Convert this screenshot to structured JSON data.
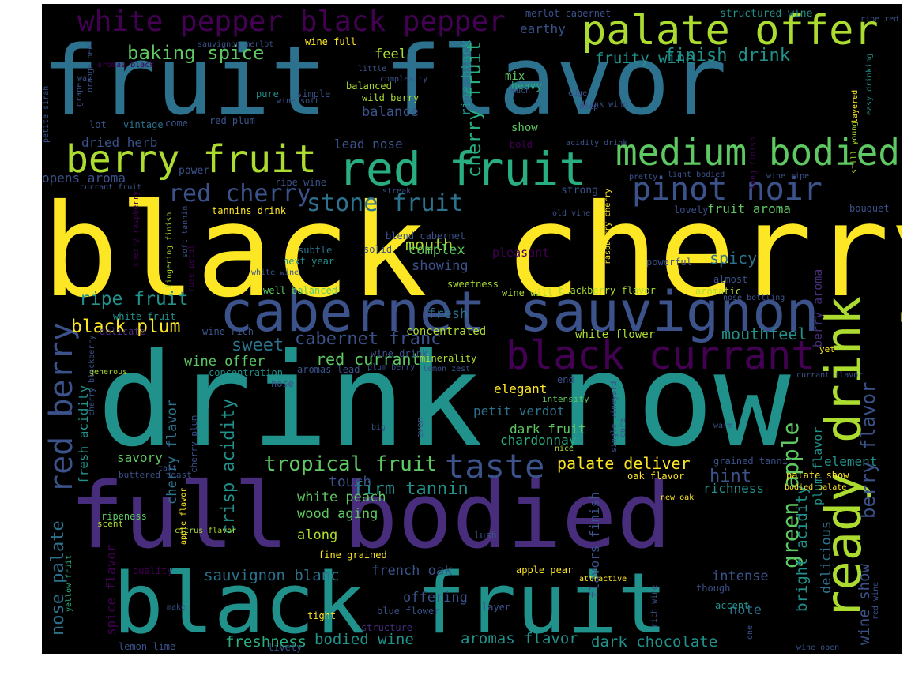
{
  "background": "#000000",
  "palette": [
    "#440154",
    "#472d7b",
    "#3b528b",
    "#2c728e",
    "#21918c",
    "#28ae80",
    "#5ec962",
    "#addc30",
    "#fde725"
  ],
  "words": [
    {
      "text": "black cherry",
      "color": "#fde725"
    },
    {
      "text": "drink now",
      "color": "#21918c"
    },
    {
      "text": "fruit flavor",
      "color": "#2c728e"
    },
    {
      "text": "full bodied",
      "color": "#472d7b"
    },
    {
      "text": "black fruit",
      "color": "#21918c"
    },
    {
      "text": "cabernet sauvignon",
      "color": "#3b528b"
    },
    {
      "text": "palate offer",
      "color": "#addc30"
    },
    {
      "text": "red fruit",
      "color": "#28ae80"
    },
    {
      "text": "berry fruit",
      "color": "#addc30"
    },
    {
      "text": "medium bodied",
      "color": "#5ec962"
    },
    {
      "text": "ready drink",
      "color": "#addc30"
    },
    {
      "text": "black currant",
      "color": "#440154"
    },
    {
      "text": "taste",
      "color": "#3b528b"
    },
    {
      "text": "pinot noir",
      "color": "#3b528b"
    },
    {
      "text": "white pepper black pepper",
      "color": "#440154"
    },
    {
      "text": "red berry",
      "color": "#3b528b"
    },
    {
      "text": "red cherry",
      "color": "#3b528b"
    },
    {
      "text": "stone fruit",
      "color": "#2c728e"
    },
    {
      "text": "tropical fruit",
      "color": "#5ec962"
    },
    {
      "text": "green apple",
      "color": "#5ec962"
    },
    {
      "text": "berry flavor",
      "color": "#3b528b"
    },
    {
      "text": "cabernet franc",
      "color": "#3b528b"
    },
    {
      "text": "baking spice",
      "color": "#5ec962"
    },
    {
      "text": "finish drink",
      "color": "#21918c"
    },
    {
      "text": "fruity wine",
      "color": "#21918c"
    },
    {
      "text": "cherry fruit",
      "color": "#28ae80"
    },
    {
      "text": "ripe fruit",
      "color": "#21918c"
    },
    {
      "text": "black plum",
      "color": "#fde725"
    },
    {
      "text": "nose palate",
      "color": "#2c728e"
    },
    {
      "text": "crisp acidity",
      "color": "#21918c"
    },
    {
      "text": "firm tannin",
      "color": "#21918c"
    },
    {
      "text": "mouth",
      "color": "#addc30"
    },
    {
      "text": "palate deliver",
      "color": "#fde725"
    },
    {
      "text": "hint",
      "color": "#3b528b"
    },
    {
      "text": "sweet",
      "color": "#2c728e"
    },
    {
      "text": "red currant",
      "color": "#5ec962"
    },
    {
      "text": "spicy",
      "color": "#2c728e"
    },
    {
      "text": "mouthfeel",
      "color": "#21918c"
    },
    {
      "text": "wine show",
      "color": "#3b528b"
    },
    {
      "text": "bodied wine",
      "color": "#21918c"
    },
    {
      "text": "aromas flavor",
      "color": "#21918c"
    },
    {
      "text": "dark chocolate",
      "color": "#21918c"
    },
    {
      "text": "freshness",
      "color": "#28ae80"
    },
    {
      "text": "sauvignon blanc",
      "color": "#2c728e"
    },
    {
      "text": "white peach",
      "color": "#5ec962"
    },
    {
      "text": "wood aging",
      "color": "#5ec962"
    },
    {
      "text": "french oak",
      "color": "#3b528b"
    },
    {
      "text": "offering",
      "color": "#3b528b"
    },
    {
      "text": "bright acidity",
      "color": "#21918c"
    },
    {
      "text": "delicious",
      "color": "#2c728e"
    },
    {
      "text": "intense",
      "color": "#3b528b"
    },
    {
      "text": "note",
      "color": "#2c728e"
    },
    {
      "text": "touch",
      "color": "#3b528b"
    },
    {
      "text": "richness",
      "color": "#21918c"
    },
    {
      "text": "chardonnay",
      "color": "#28ae80"
    },
    {
      "text": "dark fruit",
      "color": "#5ec962"
    },
    {
      "text": "petit verdot",
      "color": "#2c728e"
    },
    {
      "text": "elegant",
      "color": "#fde725"
    },
    {
      "text": "complex",
      "color": "#5ec962"
    },
    {
      "text": "showing",
      "color": "#3b528b"
    },
    {
      "text": "lead nose",
      "color": "#3b528b"
    },
    {
      "text": "dried herb",
      "color": "#3b528b"
    },
    {
      "text": "balance",
      "color": "#3b528b"
    },
    {
      "text": "feel",
      "color": "#addc30"
    },
    {
      "text": "earthy",
      "color": "#3b528b"
    },
    {
      "text": "cherry flavor",
      "color": "#2c728e"
    },
    {
      "text": "fresh acidity",
      "color": "#21918c"
    },
    {
      "text": "savory",
      "color": "#5ec962"
    },
    {
      "text": "spice flavor",
      "color": "#440154"
    },
    {
      "text": "fruit aroma",
      "color": "#5ec962"
    },
    {
      "text": "flavors finish",
      "color": "#3b528b"
    },
    {
      "text": "plum flavor",
      "color": "#21918c"
    },
    {
      "text": "berry aroma",
      "color": "#472d7b"
    },
    {
      "text": "opens aroma",
      "color": "#3b528b"
    },
    {
      "text": "ripe black",
      "color": "#21918c"
    },
    {
      "text": "fresh",
      "color": "#2c728e"
    },
    {
      "text": "wine offer",
      "color": "#5ec962"
    },
    {
      "text": "element",
      "color": "#21918c"
    },
    {
      "text": "pleasant",
      "color": "#440154"
    },
    {
      "text": "concentrated",
      "color": "#addc30"
    },
    {
      "text": "white flower",
      "color": "#addc30"
    },
    {
      "text": "along",
      "color": "#addc30"
    },
    {
      "text": "structured wine",
      "color": "#21918c"
    },
    {
      "text": "merlot cabernet",
      "color": "#3b528b"
    },
    {
      "text": "wine full",
      "color": "#fde725"
    },
    {
      "text": "mix",
      "color": "#5ec962"
    },
    {
      "text": "heavy",
      "color": "#28ae80"
    },
    {
      "text": "show",
      "color": "#5ec962"
    },
    {
      "text": "bold",
      "color": "#440154"
    },
    {
      "text": "balanced",
      "color": "#addc30"
    },
    {
      "text": "wild berry",
      "color": "#addc30"
    },
    {
      "text": "simple",
      "color": "#3b528b"
    },
    {
      "text": "pure",
      "color": "#21918c"
    },
    {
      "text": "vintage",
      "color": "#2c728e"
    },
    {
      "text": "come",
      "color": "#3b528b"
    },
    {
      "text": "lot",
      "color": "#3b528b"
    },
    {
      "text": "red plum",
      "color": "#3b528b"
    },
    {
      "text": "power",
      "color": "#3b528b"
    },
    {
      "text": "ripe wine",
      "color": "#3b528b"
    },
    {
      "text": "strong",
      "color": "#3b528b"
    },
    {
      "text": "lovely",
      "color": "#3b528b"
    },
    {
      "text": "bouquet",
      "color": "#3b528b"
    },
    {
      "text": "tannins drink",
      "color": "#fde725"
    },
    {
      "text": "subtle",
      "color": "#2c728e"
    },
    {
      "text": "next year",
      "color": "#21918c"
    },
    {
      "text": "solid",
      "color": "#3b528b"
    },
    {
      "text": "blend cabernet",
      "color": "#3b528b"
    },
    {
      "text": "powerful",
      "color": "#3b528b"
    },
    {
      "text": "almost",
      "color": "#3b528b"
    },
    {
      "text": "aromatic",
      "color": "#addc30"
    },
    {
      "text": "sweetness",
      "color": "#addc30"
    },
    {
      "text": "well balanced",
      "color": "#5ec962"
    },
    {
      "text": "blackberry flavor",
      "color": "#addc30"
    },
    {
      "text": "wine will",
      "color": "#addc30"
    },
    {
      "text": "wine drink",
      "color": "#3b528b"
    },
    {
      "text": "minerality",
      "color": "#addc30"
    },
    {
      "text": "aromas lead",
      "color": "#3b528b"
    },
    {
      "text": "concentration",
      "color": "#21918c"
    },
    {
      "text": "delicate",
      "color": "#472d7b"
    },
    {
      "text": "white fruit",
      "color": "#21918c"
    },
    {
      "text": "wine rich",
      "color": "#3b528b"
    },
    {
      "text": "nose",
      "color": "#3b528b"
    },
    {
      "text": "intensity",
      "color": "#5ec962"
    },
    {
      "text": "end",
      "color": "#3b528b"
    },
    {
      "text": "lemon zest",
      "color": "#3b528b"
    },
    {
      "text": "plum berry",
      "color": "#3b528b"
    },
    {
      "text": "even",
      "color": "#3b528b"
    },
    {
      "text": "big",
      "color": "#3b528b"
    },
    {
      "text": "warm",
      "color": "#3b528b"
    },
    {
      "text": "core",
      "color": "#3b528b"
    },
    {
      "text": "nice",
      "color": "#addc30"
    },
    {
      "text": "grained tannin",
      "color": "#3b528b"
    },
    {
      "text": "oak flavor",
      "color": "#fde725"
    },
    {
      "text": "palate show",
      "color": "#fde725"
    },
    {
      "text": "bodied palate",
      "color": "#fde725"
    },
    {
      "text": "new oak",
      "color": "#fde725"
    },
    {
      "text": "ripeness",
      "color": "#5ec962"
    },
    {
      "text": "scent",
      "color": "#addc30"
    },
    {
      "text": "quality",
      "color": "#440154"
    },
    {
      "text": "fine grained",
      "color": "#fde725"
    },
    {
      "text": "lush",
      "color": "#3b528b"
    },
    {
      "text": "apple pear",
      "color": "#fde725"
    },
    {
      "text": "attractive",
      "color": "#fde725"
    },
    {
      "text": "though",
      "color": "#3b528b"
    },
    {
      "text": "accent",
      "color": "#21918c"
    },
    {
      "text": "tight",
      "color": "#fde725"
    },
    {
      "text": "blue flower",
      "color": "#3b528b"
    },
    {
      "text": "structure",
      "color": "#472d7b"
    },
    {
      "text": "layer",
      "color": "#3b528b"
    },
    {
      "text": "lively",
      "color": "#3b528b"
    },
    {
      "text": "lemon lime",
      "color": "#3b528b"
    },
    {
      "text": "make",
      "color": "#3b528b"
    },
    {
      "text": "wine open",
      "color": "#3b528b"
    },
    {
      "text": "yet",
      "color": "#fde725"
    },
    {
      "text": "currant flavor",
      "color": "#3b528b"
    },
    {
      "text": "generous",
      "color": "#addc30"
    },
    {
      "text": "tart",
      "color": "#3b528b"
    },
    {
      "text": "buttered toast",
      "color": "#3b528b"
    },
    {
      "text": "citrus flavor",
      "color": "#addc30"
    },
    {
      "text": "cherry plum",
      "color": "#3b528b"
    },
    {
      "text": "aromas black",
      "color": "#440154"
    },
    {
      "text": "sauvignon merlot",
      "color": "#3b528b"
    },
    {
      "text": "little",
      "color": "#3b528b"
    },
    {
      "text": "complexity",
      "color": "#3b528b"
    },
    {
      "text": "much",
      "color": "#3b528b"
    },
    {
      "text": "edge",
      "color": "#3b528b"
    },
    {
      "text": "drink wine",
      "color": "#3b528b"
    },
    {
      "text": "deep",
      "color": "#3b528b"
    },
    {
      "text": "wine soft",
      "color": "#3b528b"
    },
    {
      "text": "acidity drink",
      "color": "#3b528b"
    },
    {
      "text": "pretty",
      "color": "#3b528b"
    },
    {
      "text": "light bodied",
      "color": "#3b528b"
    },
    {
      "text": "wine ripe",
      "color": "#3b528b"
    },
    {
      "text": "still young",
      "color": "#addc30"
    },
    {
      "text": "streak",
      "color": "#3b528b"
    },
    {
      "text": "old vine",
      "color": "#3b528b"
    },
    {
      "text": "currant fruit",
      "color": "#3b528b"
    },
    {
      "text": "white wine",
      "color": "#3b528b"
    },
    {
      "text": "nose bottling",
      "color": "#3b528b"
    },
    {
      "text": "ripe red",
      "color": "#3b528b"
    },
    {
      "text": "way",
      "color": "#3b528b"
    },
    {
      "text": "grape",
      "color": "#3b528b"
    },
    {
      "text": "orange peel",
      "color": "#3b528b"
    },
    {
      "text": "petite sirah",
      "color": "#3b528b"
    },
    {
      "text": "cherry raspberry",
      "color": "#440154"
    },
    {
      "text": "lingering finish",
      "color": "#addc30"
    },
    {
      "text": "soft tannin",
      "color": "#3b528b"
    },
    {
      "text": "rose petal",
      "color": "#440154"
    },
    {
      "text": "raspberry cherry",
      "color": "#fde725"
    },
    {
      "text": "long finish",
      "color": "#440154"
    },
    {
      "text": "layered",
      "color": "#fde725"
    },
    {
      "text": "easy drinking",
      "color": "#21918c"
    },
    {
      "text": "yellow fruit",
      "color": "#28ae80"
    },
    {
      "text": "apple flavor",
      "color": "#fde725"
    },
    {
      "text": "rich wine",
      "color": "#3b528b"
    },
    {
      "text": "red wine",
      "color": "#3b528b"
    },
    {
      "text": "one",
      "color": "#3b528b"
    },
    {
      "text": "single vineyard",
      "color": "#3b528b"
    },
    {
      "text": "cherry blackberry",
      "color": "#3b528b"
    }
  ]
}
